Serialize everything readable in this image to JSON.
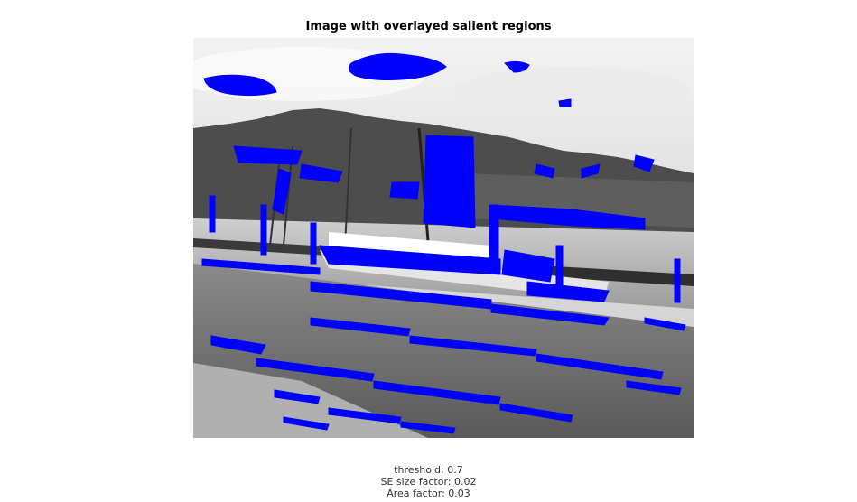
{
  "title": "Image with overlayed salient regions",
  "chart_data": {
    "type": "image-overlay",
    "title": "Image with overlayed salient regions",
    "image_description_free": true,
    "overlay_color": "#0000ff",
    "parameters": {
      "threshold": 0.7,
      "se_size_factor": 0.02,
      "area_factor": 0.03
    }
  },
  "caption": {
    "line1": "threshold: 0.7",
    "line2": "SE size factor: 0.02",
    "line3": "Area factor: 0.03"
  },
  "colors": {
    "overlay": "#0000ff",
    "sky": "#d9d9d9",
    "mountain": "#4a4a4a",
    "water": "#bdbdbd",
    "grass": "#6e6e6e",
    "path": "#a8a8a8"
  }
}
